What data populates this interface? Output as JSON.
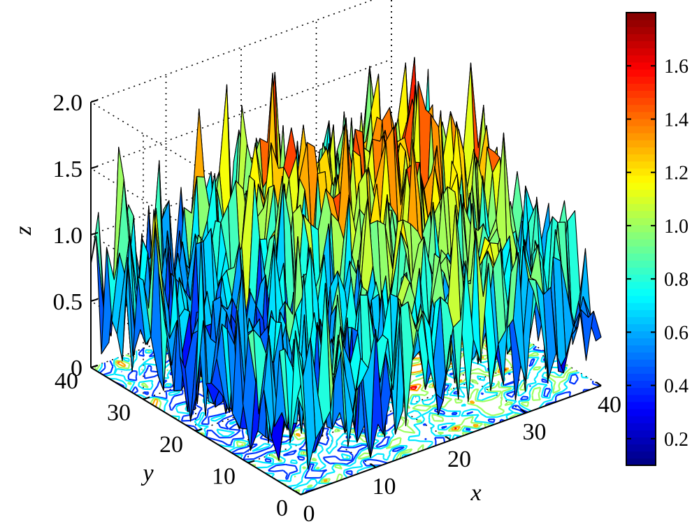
{
  "chart_data": {
    "type": "surface",
    "xlabel": "x",
    "ylabel": "y",
    "zlabel": "z",
    "xlim": [
      0,
      40
    ],
    "ylim": [
      0,
      40
    ],
    "zlim": [
      0,
      2.0
    ],
    "x_ticks": [
      "0",
      "10",
      "20",
      "30",
      "40"
    ],
    "y_ticks": [
      "0",
      "10",
      "20",
      "30",
      "40"
    ],
    "z_ticks": [
      "0",
      "0.5",
      "1.0",
      "1.5",
      "2.0"
    ],
    "grid": true,
    "contour_projection_on_base": true,
    "colormap": "jet",
    "colorbar": {
      "range": [
        0.1,
        1.8
      ],
      "ticks": [
        "0.2",
        "0.4",
        "0.6",
        "0.8",
        "1.0",
        "1.2",
        "1.4",
        "1.6"
      ],
      "position": "right"
    },
    "z_range_observed": [
      0.05,
      1.95
    ],
    "description_values": {
      "grid_size": [
        40,
        40
      ],
      "high_region": "x 20-40, y 15-30 (orange/red peaks ~1.4-1.7)",
      "low_region": "x 0-15, y 15-35 (blue, ~0.2-0.6)"
    }
  },
  "colors": {
    "jet": [
      "#00008f",
      "#0000ff",
      "#00ffff",
      "#80ff80",
      "#ffff00",
      "#ff8000",
      "#ff0000",
      "#800000"
    ],
    "gridline": "#000000"
  }
}
